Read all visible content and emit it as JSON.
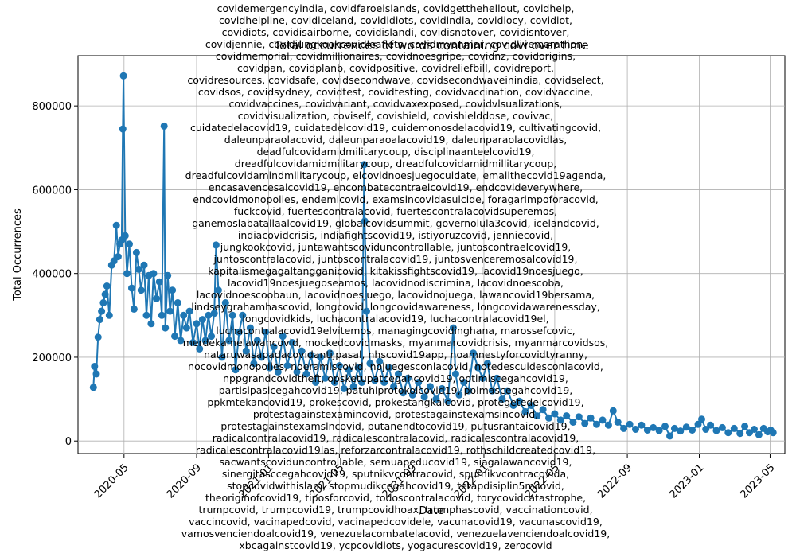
{
  "chart_data": {
    "type": "line",
    "title": "Total occurrences of words containing covi over time",
    "xlabel": "Date",
    "ylabel": "Total Occurrences",
    "grid": true,
    "x_ticks": [
      "2020-05",
      "2020-09",
      "2021-01",
      "2021-05",
      "2021-09",
      "2022-01",
      "2022-05",
      "2022-09",
      "2023-01",
      "2023-05"
    ],
    "y_ticks": [
      "0",
      "200000",
      "400000",
      "600000",
      "800000"
    ],
    "xlim": [
      "2020-02-13",
      "2023-05-26"
    ],
    "ylim": [
      -30000,
      920000
    ],
    "line_color": "#1f77b4",
    "marker": "o",
    "series": [
      {
        "values": [
          [
            "2020-03-10",
            128000
          ],
          [
            "2020-03-12",
            178000
          ],
          [
            "2020-03-15",
            160000
          ],
          [
            "2020-03-18",
            248000
          ],
          [
            "2020-03-21",
            290000
          ],
          [
            "2020-03-24",
            310000
          ],
          [
            "2020-03-27",
            330000
          ],
          [
            "2020-03-30",
            350000
          ],
          [
            "2020-04-02",
            370000
          ],
          [
            "2020-04-06",
            300000
          ],
          [
            "2020-04-10",
            420000
          ],
          [
            "2020-04-14",
            430000
          ],
          [
            "2020-04-18",
            515000
          ],
          [
            "2020-04-21",
            440000
          ],
          [
            "2020-04-24",
            470000
          ],
          [
            "2020-04-27",
            480000
          ],
          [
            "2020-04-29",
            745000
          ],
          [
            "2020-04-30",
            872000
          ],
          [
            "2020-05-03",
            490000
          ],
          [
            "2020-05-06",
            400000
          ],
          [
            "2020-05-10",
            470000
          ],
          [
            "2020-05-14",
            365000
          ],
          [
            "2020-05-18",
            315000
          ],
          [
            "2020-05-22",
            450000
          ],
          [
            "2020-05-26",
            410000
          ],
          [
            "2020-05-30",
            360000
          ],
          [
            "2020-06-04",
            420000
          ],
          [
            "2020-06-08",
            300000
          ],
          [
            "2020-06-12",
            395000
          ],
          [
            "2020-06-16",
            280000
          ],
          [
            "2020-06-20",
            400000
          ],
          [
            "2020-06-25",
            340000
          ],
          [
            "2020-06-30",
            380000
          ],
          [
            "2020-07-04",
            300000
          ],
          [
            "2020-07-08",
            752000
          ],
          [
            "2020-07-10",
            270000
          ],
          [
            "2020-07-14",
            395000
          ],
          [
            "2020-07-18",
            310000
          ],
          [
            "2020-07-22",
            360000
          ],
          [
            "2020-07-26",
            250000
          ],
          [
            "2020-07-31",
            330000
          ],
          [
            "2020-08-05",
            240000
          ],
          [
            "2020-08-10",
            300000
          ],
          [
            "2020-08-15",
            270000
          ],
          [
            "2020-08-20",
            310000
          ],
          [
            "2020-08-26",
            235000
          ],
          [
            "2020-09-01",
            280000
          ],
          [
            "2020-09-06",
            220000
          ],
          [
            "2020-09-11",
            290000
          ],
          [
            "2020-09-16",
            240000
          ],
          [
            "2020-09-21",
            300000
          ],
          [
            "2020-09-26",
            250000
          ],
          [
            "2020-10-01",
            305000
          ],
          [
            "2020-10-04",
            468000
          ],
          [
            "2020-10-08",
            360000
          ],
          [
            "2020-10-14",
            200000
          ],
          [
            "2020-10-20",
            330000
          ],
          [
            "2020-10-26",
            240000
          ],
          [
            "2020-11-01",
            300000
          ],
          [
            "2020-11-06",
            170000
          ],
          [
            "2020-11-12",
            260000
          ],
          [
            "2020-11-18",
            300000
          ],
          [
            "2020-11-24",
            215000
          ],
          [
            "2020-12-01",
            270000
          ],
          [
            "2020-12-07",
            185000
          ],
          [
            "2020-12-13",
            240000
          ],
          [
            "2020-12-20",
            200000
          ],
          [
            "2020-12-27",
            260000
          ],
          [
            "2021-01-03",
            175000
          ],
          [
            "2021-01-10",
            225000
          ],
          [
            "2021-01-17",
            165000
          ],
          [
            "2021-01-25",
            250000
          ],
          [
            "2021-02-02",
            180000
          ],
          [
            "2021-02-10",
            235000
          ],
          [
            "2021-02-18",
            165000
          ],
          [
            "2021-02-26",
            215000
          ],
          [
            "2021-03-06",
            160000
          ],
          [
            "2021-03-14",
            205000
          ],
          [
            "2021-03-22",
            140000
          ],
          [
            "2021-03-30",
            200000
          ],
          [
            "2021-04-07",
            150000
          ],
          [
            "2021-04-15",
            210000
          ],
          [
            "2021-04-23",
            140000
          ],
          [
            "2021-05-01",
            180000
          ],
          [
            "2021-05-09",
            125000
          ],
          [
            "2021-05-17",
            170000
          ],
          [
            "2021-05-25",
            130000
          ],
          [
            "2021-06-02",
            175000
          ],
          [
            "2021-06-08",
            140000
          ],
          [
            "2021-06-12",
            660000
          ],
          [
            "2021-06-13",
            525000
          ],
          [
            "2021-06-16",
            310000
          ],
          [
            "2021-06-22",
            185000
          ],
          [
            "2021-06-30",
            145000
          ],
          [
            "2021-07-08",
            190000
          ],
          [
            "2021-07-16",
            140000
          ],
          [
            "2021-07-24",
            175000
          ],
          [
            "2021-08-01",
            130000
          ],
          [
            "2021-08-09",
            160000
          ],
          [
            "2021-08-17",
            115000
          ],
          [
            "2021-08-25",
            150000
          ],
          [
            "2021-09-02",
            110000
          ],
          [
            "2021-09-12",
            140000
          ],
          [
            "2021-09-22",
            105000
          ],
          [
            "2021-10-02",
            130000
          ],
          [
            "2021-10-12",
            100000
          ],
          [
            "2021-10-22",
            125000
          ],
          [
            "2021-11-01",
            95000
          ],
          [
            "2021-11-10",
            270000
          ],
          [
            "2021-11-14",
            160000
          ],
          [
            "2021-11-20",
            110000
          ],
          [
            "2021-11-28",
            140000
          ],
          [
            "2021-12-06",
            120000
          ],
          [
            "2021-12-14",
            210000
          ],
          [
            "2021-12-22",
            175000
          ],
          [
            "2021-12-30",
            150000
          ],
          [
            "2022-01-07",
            185000
          ],
          [
            "2022-01-15",
            120000
          ],
          [
            "2022-01-23",
            150000
          ],
          [
            "2022-02-01",
            100000
          ],
          [
            "2022-02-10",
            120000
          ],
          [
            "2022-02-20",
            85000
          ],
          [
            "2022-03-02",
            95000
          ],
          [
            "2022-03-12",
            70000
          ],
          [
            "2022-03-22",
            85000
          ],
          [
            "2022-04-01",
            60000
          ],
          [
            "2022-04-11",
            75000
          ],
          [
            "2022-04-21",
            55000
          ],
          [
            "2022-05-01",
            65000
          ],
          [
            "2022-05-11",
            50000
          ],
          [
            "2022-05-21",
            60000
          ],
          [
            "2022-06-01",
            45000
          ],
          [
            "2022-06-11",
            58000
          ],
          [
            "2022-06-21",
            42000
          ],
          [
            "2022-07-01",
            55000
          ],
          [
            "2022-07-11",
            40000
          ],
          [
            "2022-07-21",
            50000
          ],
          [
            "2022-07-31",
            38000
          ],
          [
            "2022-08-08",
            72000
          ],
          [
            "2022-08-16",
            45000
          ],
          [
            "2022-08-26",
            30000
          ],
          [
            "2022-09-05",
            40000
          ],
          [
            "2022-09-15",
            28000
          ],
          [
            "2022-09-25",
            38000
          ],
          [
            "2022-10-05",
            26000
          ],
          [
            "2022-10-15",
            32000
          ],
          [
            "2022-10-25",
            25000
          ],
          [
            "2022-11-04",
            35000
          ],
          [
            "2022-11-12",
            12000
          ],
          [
            "2022-11-20",
            30000
          ],
          [
            "2022-11-30",
            24000
          ],
          [
            "2022-12-10",
            33000
          ],
          [
            "2022-12-20",
            26000
          ],
          [
            "2022-12-30",
            40000
          ],
          [
            "2023-01-05",
            52000
          ],
          [
            "2023-01-12",
            28000
          ],
          [
            "2023-01-20",
            38000
          ],
          [
            "2023-01-30",
            25000
          ],
          [
            "2023-02-09",
            32000
          ],
          [
            "2023-02-19",
            20000
          ],
          [
            "2023-03-01",
            30000
          ],
          [
            "2023-03-11",
            18000
          ],
          [
            "2023-03-19",
            35000
          ],
          [
            "2023-03-27",
            20000
          ],
          [
            "2023-04-04",
            28000
          ],
          [
            "2023-04-12",
            15000
          ],
          [
            "2023-04-20",
            30000
          ],
          [
            "2023-04-27",
            22000
          ],
          [
            "2023-05-02",
            26000
          ],
          [
            "2023-05-06",
            20000
          ]
        ]
      }
    ]
  },
  "overlay_text": [
    "covidemergencyindia, covidfaroeislands, covidgetthehellout, covidhelp,",
    "covidhelpline, covidiceland, covididiots, covidindia, covidiocy, covidiot,",
    "covidiots, covidisairborne, covidislandi, covidisnotover, covidisntover,",
    "covidjennie, covidjungkookcovidleaflets, covidmyanmar, covidlivemarathon,",
    "covidmemorial, covidmillionaires, covidnoesgripe, covidnz, covidorigins,",
    "covidpan, covidplanb, covidpositive, covidreliefbill, covidreport,",
    "covidresources, covidsafe, covidsecondwave, covidsecondwaveinindia, covidselect,",
    "covidsos, covidsydney, covidtest, covidtesting, covidvaccination, covidvaccine,",
    "covidvaccines, covidvariant, covidvaxexposed, covidvlsualizations,",
    "covidvisualization, coviself, covishield, covishielddose, covivac,",
    "cuidatedelacovid19, cuidatedelcovid19, cuidemonosdelacovid19, cultivatingcovid,",
    "daleunparaolacovid, daleunparaoalacovid19, daleunparaolacovidlas,",
    "deadfulcovidamidmilitarycoup, disciplinaanteelcovid19,",
    "dreadfulcovidamidmilitarycoup, dreadfulcovidamidmillitarycoup,",
    "dreadfulcovidamindmilitarycoup, elcovidnoesjuegocuidate, emailthecovid19agenda,",
    "encasavencesalcovid19, encombatecontraelcovid19, endcovideverywhere,",
    "endcovidmonopolies, endemicovid, examsincovidasuicide, foragarimpoforacovid,",
    "fuckcovid, fuertescontralacovid, fuertescontralacovidsuperemos,",
    "ganemoslabatallaalcovid19, globalcovidsummit, governolula3covid, icelandcovid,",
    "indiacovidcrisis, indiafightscovid19, istiyoruzcovid, jenniecovid,",
    "jungkookcovid, juntawantscoviduncontrollable, juntoscontraelcovid19,",
    "juntoscontralacovid, juntoscontralacovid19, juntosvenceremosalcovid19,",
    "kapitalismegagaltangganicovid, kitakissfightscovid19, lacovid19noesjuego,",
    "lacovid19noesjuegoseamos, lacovidnodiscrimina, lacovidnoescoba,",
    "lacovidnoescoobaun, lacovidnoesjuego, lacovidnojuega, lawancovid19bersama,",
    "lindseygrahamhascovid, longcovid, longcovidawareness, longcovidawarenessday,",
    "longcovidkids, luchacontralacovid19, luchacontralacovid19el,",
    "luchacontralacovid19elvitemos, managingcovidinghana, marossefcovic,",
    "merdekamelawancovid, mockedcovidmasks, myanmarcovidcrisis, myanmarcovidsos,",
    "nataruwasapadacovidantijpasal, nhscovid19app, noamnestyforcovidtyranny,",
    "nocovidmonopolies, noeramiscovid, nojuegesconlacovid, notedescuidesconlacovid,",
    "nppgrandcovidtheft, opsketupatcegahcovid19, optimiscegahcovid19,",
    "partisipasicegahcovid19, patuhiprotokolcovid19, polmascegahcovid19,",
    "ppkmtekancovid19, prokescovid, prokestangkalcovid, protegetedelcovid19,",
    "protestagainstexamincovid, protestagainstexamsincovid,",
    "protestagainstexamslncovid, putanendtocovid19, putusrantaicovid19,",
    "radicalcontralacovid19, radicalescontralacovid, radicalescontralacovid19,",
    "radicalescontralacovid19las, reforzarcontralacovid19, rothschildcreatedcovid19,",
    "sacwantscoviduncontrollable, semuapeducovid19, siagalawancovid19,",
    "sinergitasccegahcovid19, sputnikvcontracovid, sputnikvcontracovida,",
    "stopcovidwithislam, stopmudikcegahcovid19, tetapdisiplin5mcovid,",
    "theoriginofcovid19, tiposforcovid, todoscontralacovid, torycovidcatastrophe,",
    "trumpcovid, trumpcovid19, trumpcovidhoax, trumphascovid, vaccinationcovid,",
    "vaccincovid, vacinapedcovid, vacinapedcovidele, vacunacovid19, vacunascovid19,",
    "vamosvenciendoalcovid19, venezuelacombatelacovid, venezuelavenciendoalcovid19,",
    "xbcagainstcovid19, ycpcovidiots, yogacurescovid19, zerocovid"
  ]
}
